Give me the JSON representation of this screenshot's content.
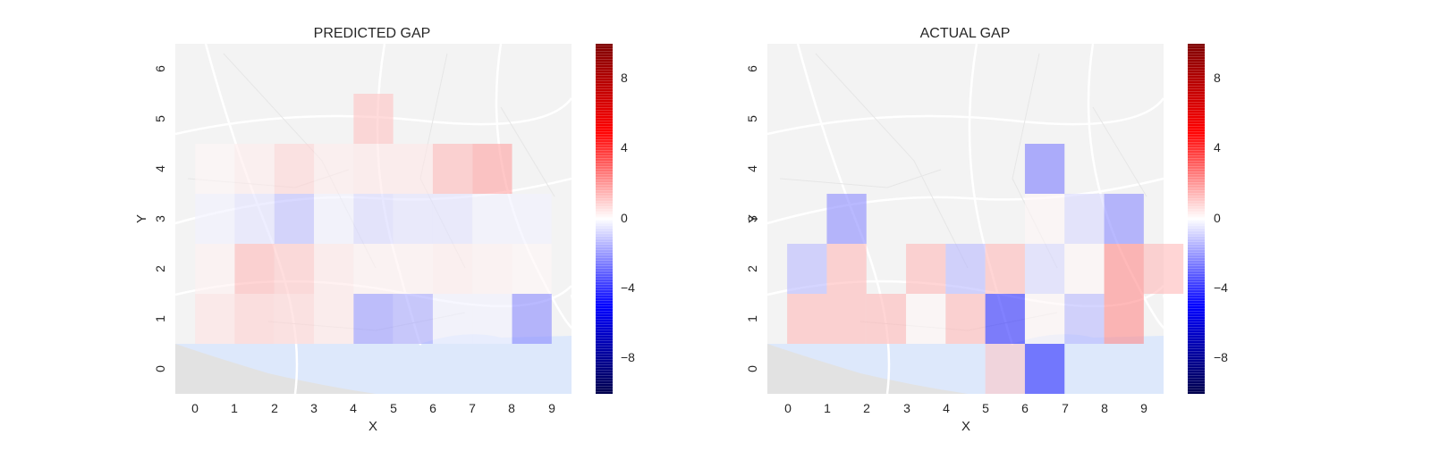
{
  "chart_data": [
    {
      "type": "heatmap",
      "title": "PREDICTED GAP",
      "xlabel": "X",
      "ylabel": "Y",
      "x_ticks": [
        "0",
        "1",
        "2",
        "3",
        "4",
        "5",
        "6",
        "7",
        "8",
        "9"
      ],
      "y_ticks": [
        "0",
        "1",
        "2",
        "3",
        "4",
        "5",
        "6"
      ],
      "xlim": [
        -0.5,
        9.5
      ],
      "ylim": [
        -0.5,
        6.5
      ],
      "colormap": "seismic",
      "value_range": [
        -10,
        10
      ],
      "colorbar_ticks": [
        "8",
        "4",
        "0",
        "−4",
        "−8"
      ],
      "colorbar_tick_values": [
        8,
        4,
        0,
        -4,
        -8
      ],
      "background": "street map (faded)",
      "cells": [
        {
          "x": 0,
          "y": 1,
          "v": 0.6
        },
        {
          "x": 1,
          "y": 1,
          "v": 1.0
        },
        {
          "x": 2,
          "y": 1,
          "v": 0.9
        },
        {
          "x": 3,
          "y": 1,
          "v": 0.5
        },
        {
          "x": 4,
          "y": 1,
          "v": -2.2
        },
        {
          "x": 5,
          "y": 1,
          "v": -1.8
        },
        {
          "x": 6,
          "y": 1,
          "v": -0.3
        },
        {
          "x": 7,
          "y": 1,
          "v": -0.3
        },
        {
          "x": 8,
          "y": 1,
          "v": -2.5
        },
        {
          "x": 0,
          "y": 2,
          "v": 0.3
        },
        {
          "x": 1,
          "y": 2,
          "v": 1.5
        },
        {
          "x": 2,
          "y": 2,
          "v": 1.2
        },
        {
          "x": 3,
          "y": 2,
          "v": 0.5
        },
        {
          "x": 4,
          "y": 2,
          "v": 0.3
        },
        {
          "x": 5,
          "y": 2,
          "v": 0.3
        },
        {
          "x": 6,
          "y": 2,
          "v": 0.4
        },
        {
          "x": 7,
          "y": 2,
          "v": 0.3
        },
        {
          "x": 8,
          "y": 2,
          "v": 0.2
        },
        {
          "x": 0,
          "y": 3,
          "v": -0.3
        },
        {
          "x": 1,
          "y": 3,
          "v": -0.6
        },
        {
          "x": 2,
          "y": 3,
          "v": -1.4
        },
        {
          "x": 3,
          "y": 3,
          "v": -0.3
        },
        {
          "x": 4,
          "y": 3,
          "v": -0.8
        },
        {
          "x": 5,
          "y": 3,
          "v": -0.6
        },
        {
          "x": 6,
          "y": 3,
          "v": -0.6
        },
        {
          "x": 7,
          "y": 3,
          "v": -0.3
        },
        {
          "x": 8,
          "y": 3,
          "v": -0.3
        },
        {
          "x": 0,
          "y": 4,
          "v": 0.2
        },
        {
          "x": 1,
          "y": 4,
          "v": 0.4
        },
        {
          "x": 2,
          "y": 4,
          "v": 0.9
        },
        {
          "x": 3,
          "y": 4,
          "v": 0.4
        },
        {
          "x": 4,
          "y": 4,
          "v": 0.5
        },
        {
          "x": 5,
          "y": 4,
          "v": 0.5
        },
        {
          "x": 6,
          "y": 4,
          "v": 1.5
        },
        {
          "x": 7,
          "y": 4,
          "v": 2.0
        },
        {
          "x": 4,
          "y": 5,
          "v": 1.3
        }
      ]
    },
    {
      "type": "heatmap",
      "title": "ACTUAL GAP",
      "xlabel": "X",
      "ylabel": "Y",
      "x_ticks": [
        "0",
        "1",
        "2",
        "3",
        "4",
        "5",
        "6",
        "7",
        "8",
        "9"
      ],
      "y_ticks": [
        "0",
        "1",
        "2",
        "3",
        "4",
        "5",
        "6"
      ],
      "xlim": [
        -0.5,
        9.5
      ],
      "ylim": [
        -0.5,
        6.5
      ],
      "colormap": "seismic",
      "value_range": [
        -10,
        10
      ],
      "colorbar_ticks": [
        "8",
        "4",
        "0",
        "−4",
        "−8"
      ],
      "colorbar_tick_values": [
        8,
        4,
        0,
        -4,
        -8
      ],
      "background": "street map (faded)",
      "cells": [
        {
          "x": 5,
          "y": 0,
          "v": 1.2
        },
        {
          "x": 6,
          "y": 0,
          "v": -4.5
        },
        {
          "x": 0,
          "y": 1,
          "v": 1.5
        },
        {
          "x": 1,
          "y": 1,
          "v": 1.5
        },
        {
          "x": 2,
          "y": 1,
          "v": 1.5
        },
        {
          "x": 3,
          "y": 1,
          "v": 0.2
        },
        {
          "x": 4,
          "y": 1,
          "v": 1.5
        },
        {
          "x": 5,
          "y": 1,
          "v": -4.5
        },
        {
          "x": 6,
          "y": 1,
          "v": 0.2
        },
        {
          "x": 7,
          "y": 1,
          "v": -1.5
        },
        {
          "x": 8,
          "y": 1,
          "v": 2.5
        },
        {
          "x": 0,
          "y": 2,
          "v": -1.5
        },
        {
          "x": 1,
          "y": 2,
          "v": 1.5
        },
        {
          "x": 3,
          "y": 2,
          "v": 1.5
        },
        {
          "x": 4,
          "y": 2,
          "v": -1.5
        },
        {
          "x": 5,
          "y": 2,
          "v": 1.5
        },
        {
          "x": 6,
          "y": 2,
          "v": -0.8
        },
        {
          "x": 7,
          "y": 2,
          "v": 0.2
        },
        {
          "x": 8,
          "y": 2,
          "v": 2.5
        },
        {
          "x": 9,
          "y": 2,
          "v": 1.5
        },
        {
          "x": 1,
          "y": 3,
          "v": -2.5
        },
        {
          "x": 6,
          "y": 3,
          "v": 0.2
        },
        {
          "x": 7,
          "y": 3,
          "v": -0.8
        },
        {
          "x": 8,
          "y": 3,
          "v": -2.5
        },
        {
          "x": 6,
          "y": 4,
          "v": -2.8
        }
      ]
    }
  ]
}
